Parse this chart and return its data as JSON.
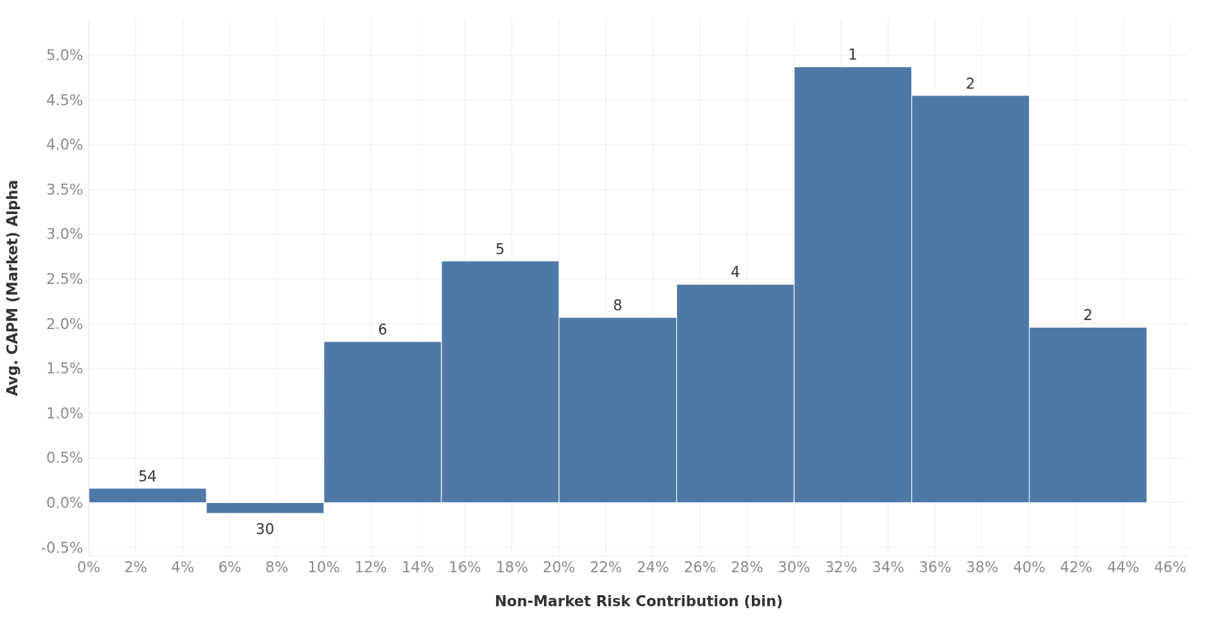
{
  "chart_data": {
    "type": "histogram",
    "xlabel": "Non-Market Risk Contribution (bin)",
    "ylabel": "Avg. CAPM (Market) Alpha",
    "bins": [
      0,
      5,
      10,
      15,
      20,
      25,
      30,
      35,
      40,
      45
    ],
    "values": [
      0.16,
      -0.12,
      1.8,
      2.7,
      2.07,
      2.44,
      4.87,
      4.55,
      1.96
    ],
    "annotations": [
      {
        "text": "54",
        "x": 2.5,
        "y": 0.16
      },
      {
        "text": "30",
        "x": 7.5,
        "y": -0.12
      },
      {
        "text": "6",
        "x": 12.5,
        "y": 1.8
      },
      {
        "text": "5",
        "x": 17.5,
        "y": 2.7
      },
      {
        "text": "8",
        "x": 22.5,
        "y": 2.07
      },
      {
        "text": "4",
        "x": 27.5,
        "y": 2.44
      },
      {
        "text": "1",
        "x": 32.5,
        "y": 4.87
      },
      {
        "text": "2",
        "x": 37.5,
        "y": 4.55
      },
      {
        "text": "2",
        "x": 42.5,
        "y": 1.96
      }
    ],
    "color": "#4e79a7",
    "xlim": [
      0,
      46.8
    ],
    "xticks": [
      {
        "value": 0,
        "label": "0%"
      },
      {
        "value": 2,
        "label": "2%"
      },
      {
        "value": 4,
        "label": "4%"
      },
      {
        "value": 6,
        "label": "6%"
      },
      {
        "value": 8,
        "label": "8%"
      },
      {
        "value": 10,
        "label": "10%"
      },
      {
        "value": 12,
        "label": "12%"
      },
      {
        "value": 14,
        "label": "14%"
      },
      {
        "value": 16,
        "label": "16%"
      },
      {
        "value": 18,
        "label": "18%"
      },
      {
        "value": 20,
        "label": "20%"
      },
      {
        "value": 22,
        "label": "22%"
      },
      {
        "value": 24,
        "label": "24%"
      },
      {
        "value": 26,
        "label": "26%"
      },
      {
        "value": 28,
        "label": "28%"
      },
      {
        "value": 30,
        "label": "30%"
      },
      {
        "value": 32,
        "label": "32%"
      },
      {
        "value": 34,
        "label": "34%"
      },
      {
        "value": 36,
        "label": "36%"
      },
      {
        "value": 38,
        "label": "38%"
      },
      {
        "value": 40,
        "label": "40%"
      },
      {
        "value": 42,
        "label": "42%"
      },
      {
        "value": 44,
        "label": "44%"
      },
      {
        "value": 46,
        "label": "46%"
      }
    ],
    "ylim": [
      -0.6,
      5.4
    ],
    "yticks": [
      {
        "value": -0.5,
        "label": "-0.5%"
      },
      {
        "value": 0,
        "label": "0.0%"
      },
      {
        "value": 0.5,
        "label": "0.5%"
      },
      {
        "value": 1,
        "label": "1.0%"
      },
      {
        "value": 1.5,
        "label": "1.5%"
      },
      {
        "value": 2,
        "label": "2.0%"
      },
      {
        "value": 2.5,
        "label": "2.5%"
      },
      {
        "value": 3,
        "label": "3.0%"
      },
      {
        "value": 3.5,
        "label": "3.5%"
      },
      {
        "value": 4,
        "label": "4.0%"
      },
      {
        "value": 4.5,
        "label": "4.5%"
      },
      {
        "value": 5,
        "label": "5.0%"
      }
    ],
    "grid": true
  }
}
